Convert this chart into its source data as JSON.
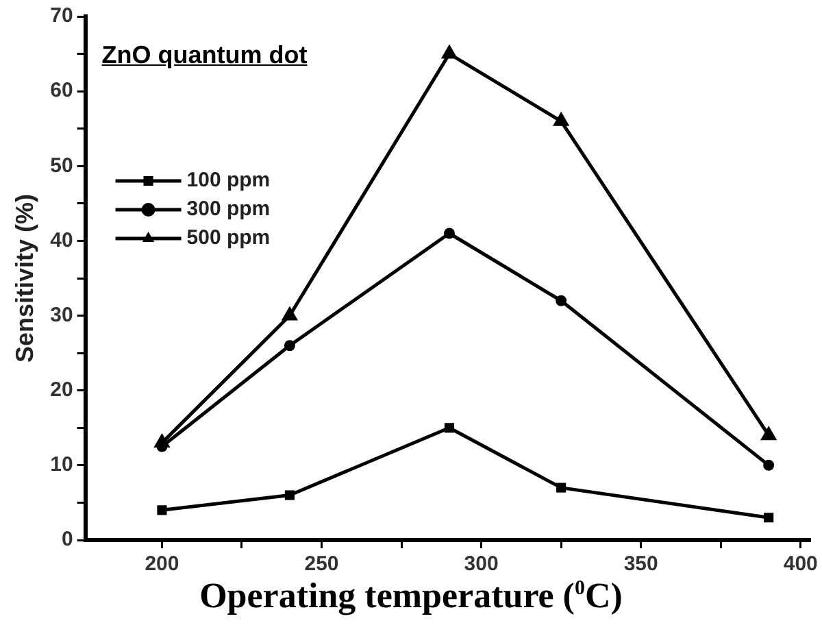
{
  "chart_data": {
    "type": "line",
    "xlabel": "Operating temperature ($^{0}$C)",
    "ylabel": "Sensitivity (%)",
    "annotations": [
      "ZnO quantum dot"
    ],
    "x": [
      200,
      240,
      290,
      325,
      390
    ],
    "series": [
      {
        "name": "100 ppm",
        "color": "#000000",
        "marker": "square",
        "values": [
          4,
          6,
          15,
          7,
          3
        ]
      },
      {
        "name": "300 ppm",
        "color": "#000000",
        "marker": "circle",
        "values": [
          12.5,
          26,
          41,
          32,
          10
        ]
      },
      {
        "name": "500 ppm",
        "color": "#000000",
        "marker": "triangle",
        "values": [
          13,
          30,
          65,
          56,
          14
        ]
      }
    ],
    "xlim": [
      176,
      403
    ],
    "xticks": [
      200,
      {
        "value": 225,
        "label": null
      },
      250,
      {
        "value": 275,
        "label": null
      },
      300,
      {
        "value": 325,
        "label": null
      },
      350,
      {
        "value": 375,
        "label": null
      },
      400
    ],
    "ylim": [
      0,
      70
    ],
    "yticks": [
      0,
      {
        "value": 5,
        "label": null
      },
      10,
      {
        "value": 15,
        "label": null
      },
      20,
      {
        "value": 25,
        "label": null
      },
      30,
      {
        "value": 35,
        "label": null
      },
      40,
      {
        "value": 45,
        "label": null
      },
      50,
      {
        "value": 55,
        "label": null
      },
      60,
      {
        "value": 65,
        "label": null
      },
      70
    ],
    "grid": false,
    "legend": "top left",
    "line_style": "solid"
  }
}
